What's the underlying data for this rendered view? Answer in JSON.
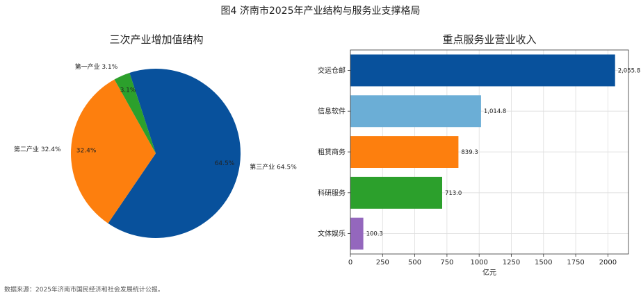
{
  "figure": {
    "title": "图4 济南市2025年产业结构与服务业支撑格局",
    "source_note": "数据来源：2025年济南市国民经济和社会发展统计公报。"
  },
  "chart_data": [
    {
      "type": "pie",
      "title": "三次产业增加值结构",
      "unit": "%",
      "slices": [
        {
          "label": "第三产业 64.5%",
          "value": 64.5,
          "pct_label": "64.5%",
          "color": "#08519c"
        },
        {
          "label": "第二产业 32.4%",
          "value": 32.4,
          "pct_label": "32.4%",
          "color": "#fd7f0e"
        },
        {
          "label": "第一产业 3.1%",
          "value": 3.1,
          "pct_label": "3.1%",
          "color": "#2ca02c"
        }
      ]
    },
    {
      "type": "bar",
      "orientation": "horizontal",
      "title": "重点服务业营业收入",
      "xlabel": "亿元",
      "xlim": [
        0,
        2160
      ],
      "xticks": [
        0,
        250,
        500,
        750,
        1000,
        1250,
        1500,
        1750,
        2000
      ],
      "grid": true,
      "categories": [
        "交运仓邮",
        "信息软件",
        "租赁商务",
        "科研服务",
        "文体娱乐"
      ],
      "values": [
        2055.8,
        1014.8,
        839.3,
        713.0,
        100.3
      ],
      "value_labels": [
        "2,055.8",
        "1,014.8",
        "839.3",
        "713.0",
        "100.3"
      ],
      "colors": [
        "#08519c",
        "#6baed6",
        "#fd7f0e",
        "#2ca02c",
        "#9467bd"
      ]
    }
  ]
}
